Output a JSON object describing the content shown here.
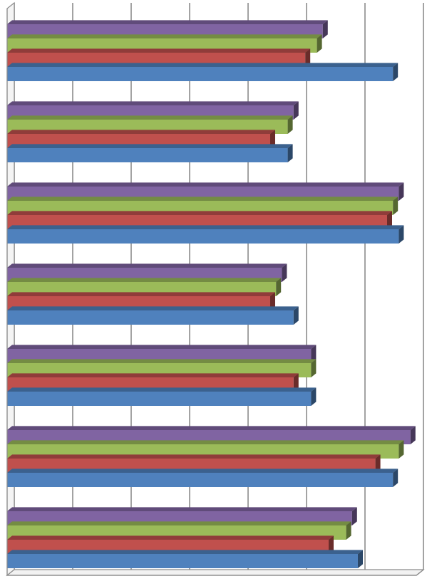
{
  "chart_data": {
    "type": "bar",
    "orientation": "horizontal",
    "style": "3d-clustered",
    "title": "",
    "xlabel": "",
    "ylabel": "",
    "tick_labels_visible": false,
    "xlim": [
      0,
      7
    ],
    "x_gridlines": [
      1,
      2,
      3,
      4,
      5,
      6,
      7
    ],
    "grid": true,
    "legend": "none",
    "categories": [
      "",
      "",
      "",
      "",
      "",
      "",
      ""
    ],
    "series": [
      {
        "color": "#4F81BD",
        "values": [
          6.6,
          4.8,
          6.7,
          4.9,
          5.2,
          6.6,
          6.0
        ]
      },
      {
        "color": "#C0504D",
        "values": [
          5.1,
          4.5,
          6.5,
          4.5,
          4.9,
          6.3,
          5.5
        ]
      },
      {
        "color": "#9BBB59",
        "values": [
          5.3,
          4.8,
          6.6,
          4.6,
          5.2,
          6.7,
          5.8
        ]
      },
      {
        "color": "#8064A2",
        "values": [
          5.4,
          4.9,
          6.7,
          4.7,
          5.2,
          6.9,
          5.9
        ]
      }
    ]
  }
}
